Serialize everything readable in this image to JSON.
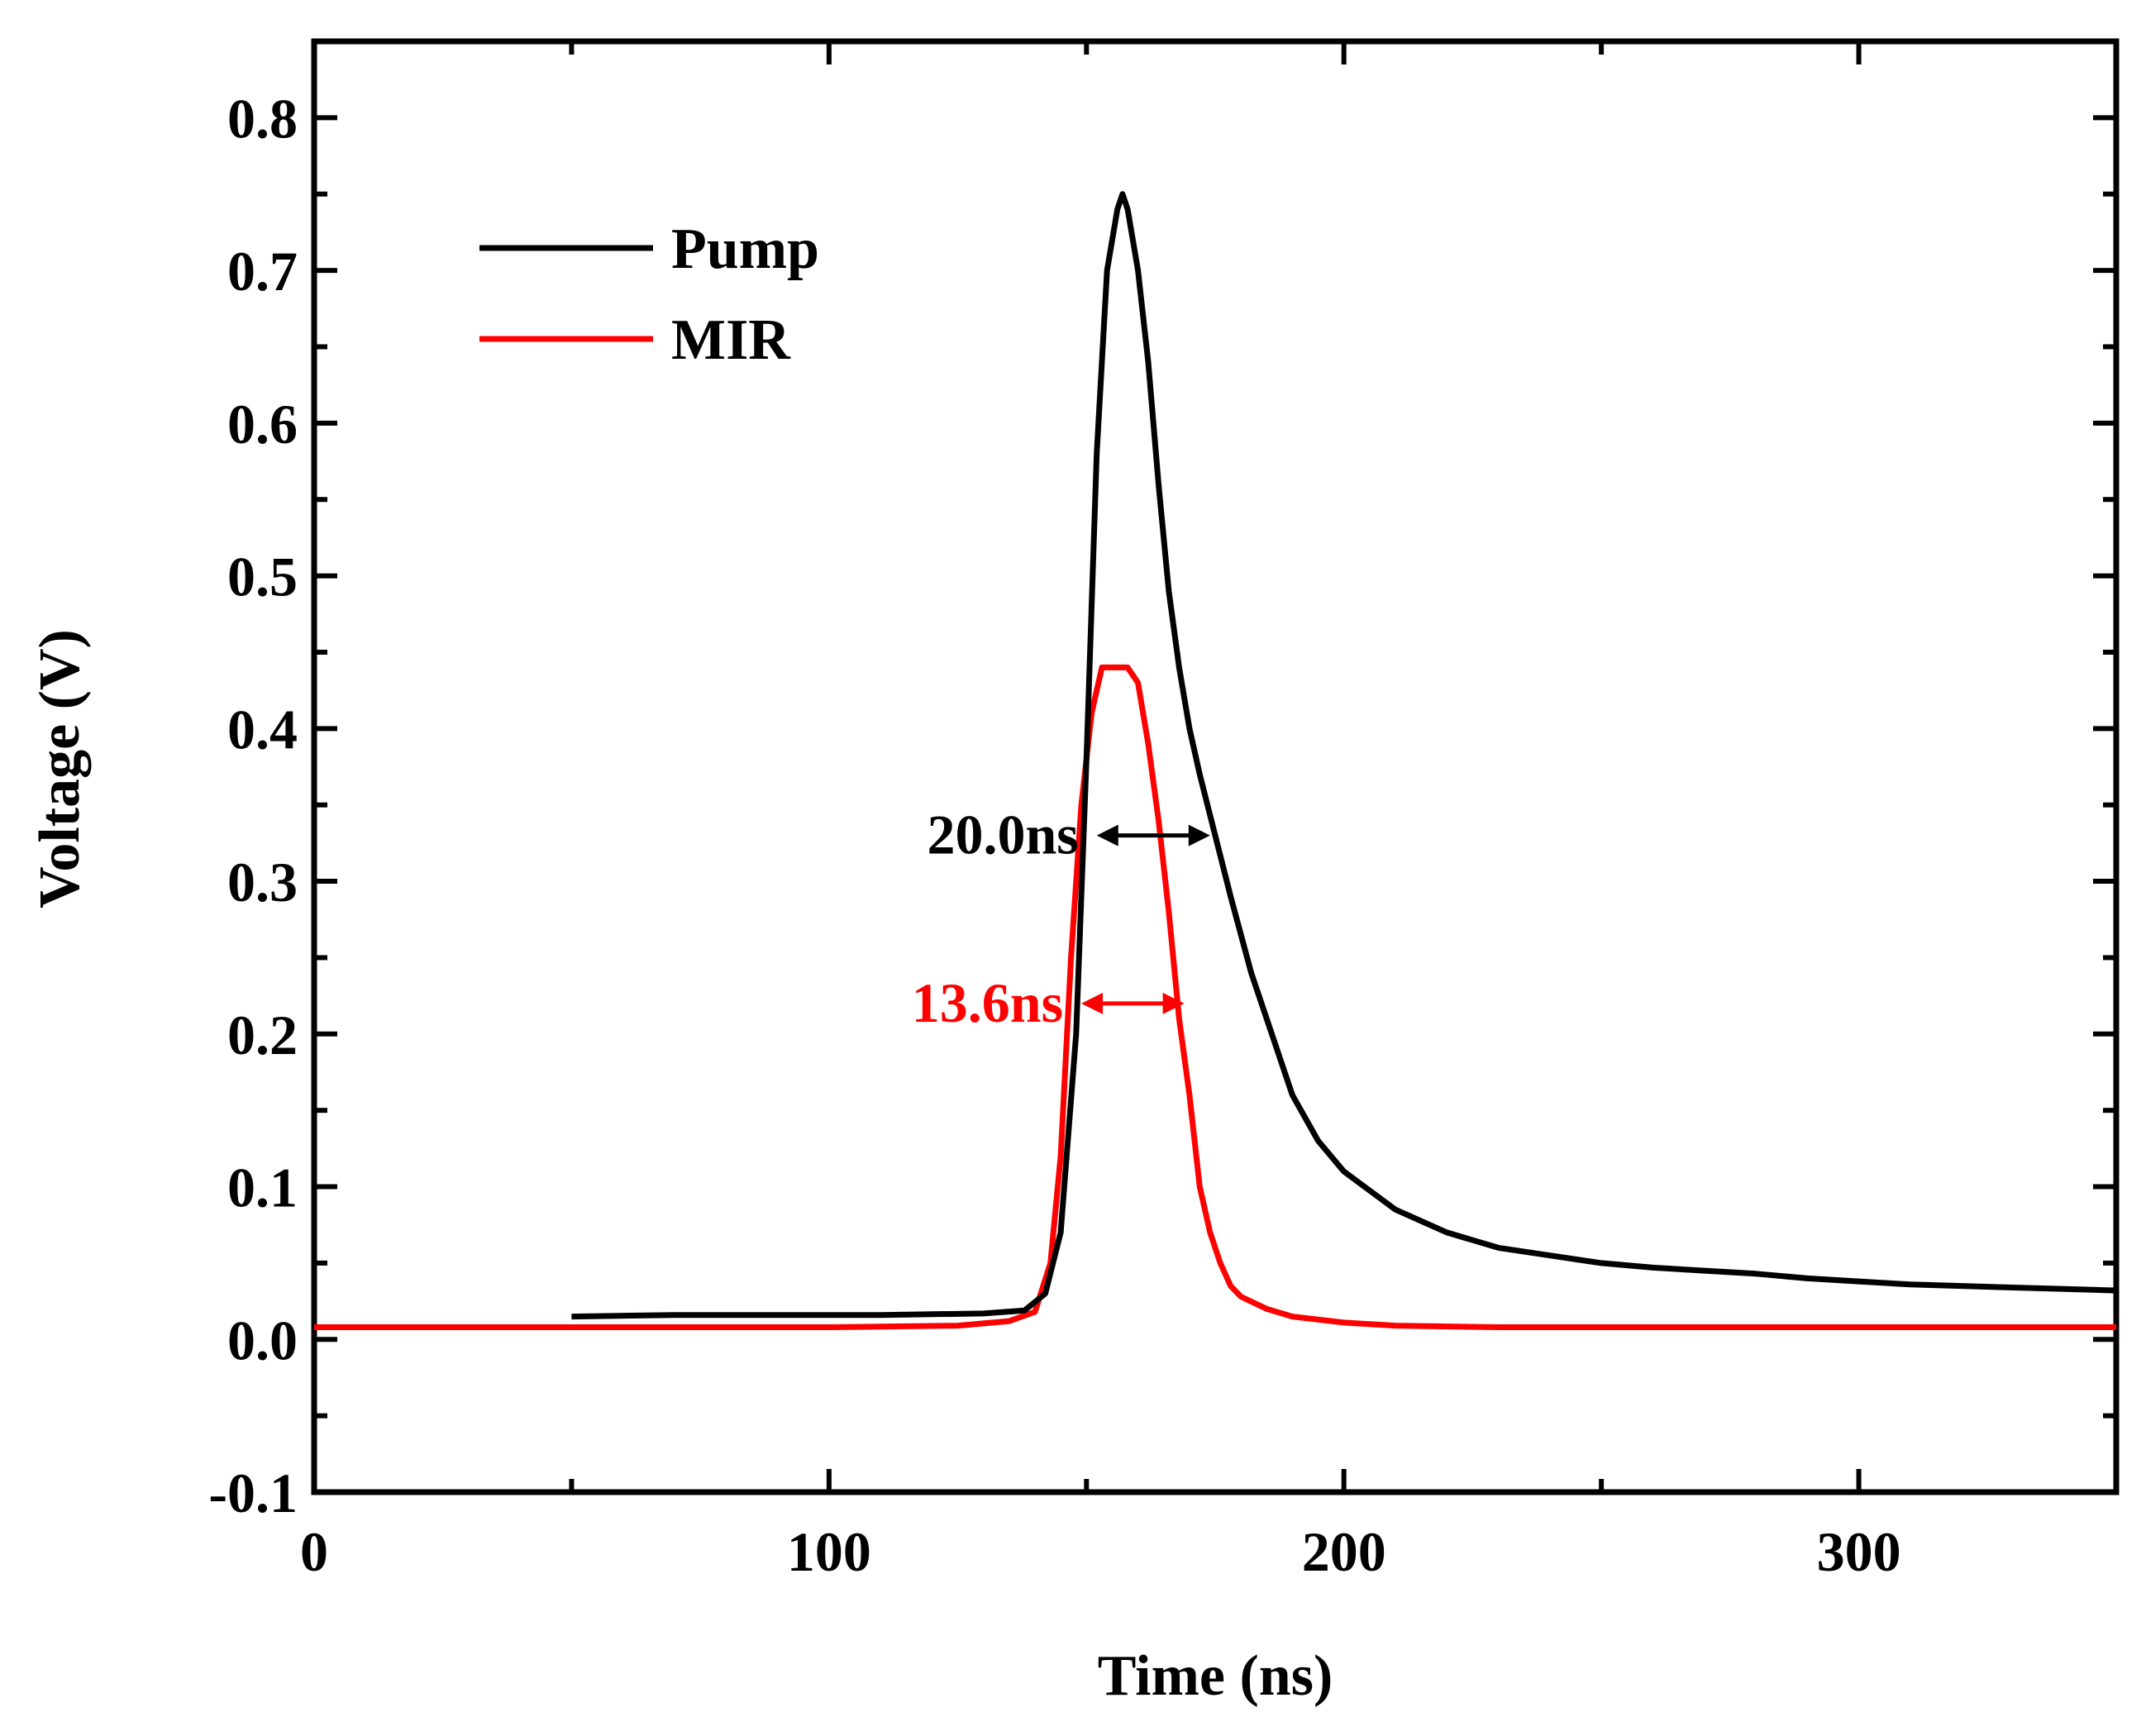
{
  "chart_data": {
    "type": "line",
    "title": "",
    "xlabel": "Time (ns)",
    "ylabel": "Voltage (V)",
    "xlim": [
      0,
      350
    ],
    "ylim": [
      -0.1,
      0.85
    ],
    "x_ticks": [
      0,
      100,
      200,
      300
    ],
    "x_tick_labels": [
      "0",
      "100",
      "200",
      "300"
    ],
    "y_ticks": [
      -0.1,
      0.0,
      0.1,
      0.2,
      0.3,
      0.4,
      0.5,
      0.6,
      0.7,
      0.8
    ],
    "y_tick_labels": [
      "-0.1",
      "0.0",
      "0.1",
      "0.2",
      "0.3",
      "0.4",
      "0.5",
      "0.6",
      "0.7",
      "0.8"
    ],
    "grid": false,
    "legend_position": "top-left",
    "series": [
      {
        "name": "Pump",
        "color": "#000000",
        "x": [
          50,
          70,
          90,
          110,
          130,
          138,
          142,
          145,
          148,
          150,
          152,
          154,
          156,
          157,
          158,
          160,
          162,
          164,
          166,
          168,
          170,
          172,
          175,
          178,
          182,
          186,
          190,
          195,
          200,
          210,
          220,
          230,
          240,
          250,
          260,
          270,
          280,
          290,
          300,
          310,
          320,
          330,
          340,
          350
        ],
        "y": [
          0.015,
          0.016,
          0.016,
          0.016,
          0.017,
          0.019,
          0.03,
          0.07,
          0.2,
          0.38,
          0.58,
          0.7,
          0.74,
          0.75,
          0.74,
          0.7,
          0.64,
          0.56,
          0.49,
          0.44,
          0.4,
          0.37,
          0.33,
          0.29,
          0.24,
          0.2,
          0.16,
          0.13,
          0.11,
          0.085,
          0.07,
          0.06,
          0.055,
          0.05,
          0.047,
          0.045,
          0.043,
          0.04,
          0.038,
          0.036,
          0.035,
          0.034,
          0.033,
          0.032
        ]
      },
      {
        "name": "MIR",
        "color": "#ff0000",
        "x": [
          0,
          50,
          100,
          125,
          135,
          140,
          143,
          145,
          147,
          149,
          151,
          153,
          155,
          157,
          158,
          160,
          162,
          164,
          166,
          168,
          170,
          172,
          174,
          176,
          178,
          180,
          185,
          190,
          200,
          210,
          230,
          260,
          300,
          350
        ],
        "y": [
          0.008,
          0.008,
          0.008,
          0.009,
          0.012,
          0.018,
          0.05,
          0.12,
          0.25,
          0.35,
          0.41,
          0.44,
          0.44,
          0.44,
          0.44,
          0.43,
          0.39,
          0.34,
          0.28,
          0.21,
          0.16,
          0.1,
          0.07,
          0.05,
          0.035,
          0.028,
          0.02,
          0.015,
          0.011,
          0.009,
          0.008,
          0.008,
          0.008,
          0.008
        ]
      }
    ],
    "annotations": [
      {
        "text": "20.0ns",
        "color": "#000000",
        "x_start": 152,
        "x_end": 174,
        "y": 0.33
      },
      {
        "text": "13.6ns",
        "color": "#ff0000",
        "x_start": 149,
        "x_end": 169,
        "y": 0.22
      }
    ]
  }
}
